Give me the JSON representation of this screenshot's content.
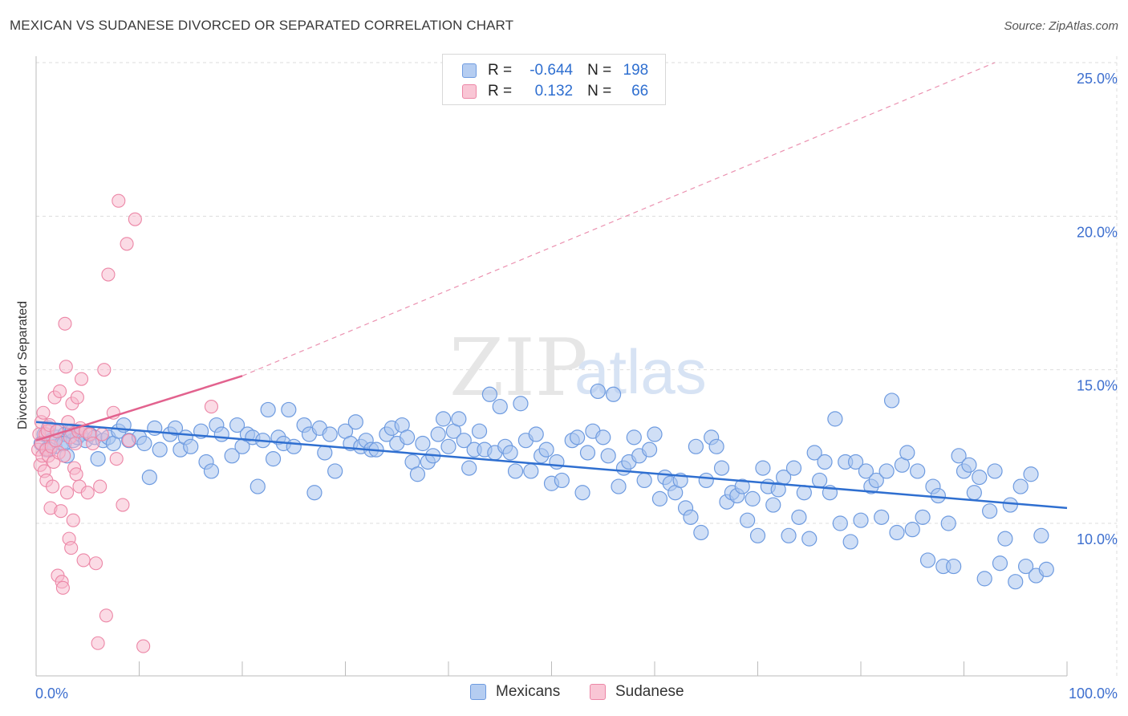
{
  "header": {
    "title": "MEXICAN VS SUDANESE DIVORCED OR SEPARATED CORRELATION CHART",
    "source": "Source: ZipAtlas.com"
  },
  "watermark": {
    "zip": "ZIP",
    "atlas": "atlas"
  },
  "legend": {
    "rows": [
      {
        "r_label": "R =",
        "r_value": "-0.644",
        "n_label": "N =",
        "n_value": "198"
      },
      {
        "r_label": "R =",
        "r_value": "0.132",
        "n_label": "N =",
        "n_value": "66"
      }
    ]
  },
  "bottom_legend": {
    "items": [
      "Mexicans",
      "Sudanese"
    ]
  },
  "colors": {
    "mexicans_fill": "#a9c5ee",
    "mexicans_stroke": "#6e9be0",
    "mexicans_line": "#2f6fd0",
    "sudanese_fill": "#f7b8cc",
    "sudanese_stroke": "#ec86a6",
    "sudanese_line": "#e2628e",
    "tick_text": "#3d6fcf",
    "grid": "#dddddd"
  },
  "chart_data": {
    "type": "scatter",
    "title": "MEXICAN VS SUDANESE DIVORCED OR SEPARATED CORRELATION CHART",
    "xlabel": "",
    "ylabel": "Divorced or Separated",
    "xlim": [
      0,
      100
    ],
    "ylim": [
      5,
      26
    ],
    "x_tick_labels": [
      "0.0%",
      "100.0%"
    ],
    "y_ticks": [
      10,
      15,
      20,
      25
    ],
    "y_tick_labels": [
      "10.0%",
      "15.0%",
      "20.0%",
      "25.0%"
    ],
    "grid": true,
    "legend_placement": "top-center",
    "series": [
      {
        "name": "Mexicans",
        "r": -0.644,
        "n": 198,
        "trend": {
          "x": [
            0,
            100
          ],
          "y": [
            13.3,
            10.5
          ]
        },
        "points": [
          [
            0.5,
            12.6
          ],
          [
            0.8,
            12.9
          ],
          [
            1.0,
            12.4
          ],
          [
            1.2,
            13.1
          ],
          [
            1.5,
            12.7
          ],
          [
            1.8,
            12.5
          ],
          [
            2.0,
            12.8
          ],
          [
            2.2,
            13.0
          ],
          [
            2.5,
            12.6
          ],
          [
            2.8,
            12.9
          ],
          [
            3.0,
            12.2
          ],
          [
            3.3,
            13.0
          ],
          [
            3.6,
            12.7
          ],
          [
            4.0,
            12.8
          ],
          [
            4.3,
            12.9
          ],
          [
            4.8,
            12.7
          ],
          [
            5.2,
            12.9
          ],
          [
            5.7,
            12.8
          ],
          [
            6.0,
            12.1
          ],
          [
            6.5,
            12.7
          ],
          [
            7.0,
            12.8
          ],
          [
            7.5,
            12.6
          ],
          [
            8.0,
            13.0
          ],
          [
            8.5,
            13.2
          ],
          [
            9.0,
            12.7
          ],
          [
            10.0,
            12.8
          ],
          [
            10.5,
            12.6
          ],
          [
            11.0,
            11.5
          ],
          [
            11.5,
            13.1
          ],
          [
            12.0,
            12.4
          ],
          [
            13.0,
            12.9
          ],
          [
            13.5,
            13.1
          ],
          [
            14.0,
            12.4
          ],
          [
            14.5,
            12.8
          ],
          [
            15.0,
            12.5
          ],
          [
            16.0,
            13.0
          ],
          [
            16.5,
            12.0
          ],
          [
            17.0,
            11.7
          ],
          [
            17.5,
            13.2
          ],
          [
            18.0,
            12.9
          ],
          [
            19.0,
            12.2
          ],
          [
            19.5,
            13.2
          ],
          [
            20.0,
            12.5
          ],
          [
            20.5,
            12.9
          ],
          [
            21.0,
            12.8
          ],
          [
            21.5,
            11.2
          ],
          [
            22.0,
            12.7
          ],
          [
            22.5,
            13.7
          ],
          [
            23.0,
            12.1
          ],
          [
            23.5,
            12.8
          ],
          [
            24.0,
            12.6
          ],
          [
            24.5,
            13.7
          ],
          [
            25.0,
            12.5
          ],
          [
            26.0,
            13.2
          ],
          [
            26.5,
            12.9
          ],
          [
            27.0,
            11.0
          ],
          [
            27.5,
            13.1
          ],
          [
            28.0,
            12.3
          ],
          [
            28.5,
            12.9
          ],
          [
            29.0,
            11.7
          ],
          [
            30.0,
            13.0
          ],
          [
            30.5,
            12.6
          ],
          [
            31.0,
            13.3
          ],
          [
            31.5,
            12.5
          ],
          [
            32.0,
            12.7
          ],
          [
            32.5,
            12.4
          ],
          [
            33.0,
            12.4
          ],
          [
            34.0,
            12.9
          ],
          [
            34.5,
            13.1
          ],
          [
            35.0,
            12.6
          ],
          [
            35.5,
            13.2
          ],
          [
            36.0,
            12.8
          ],
          [
            36.5,
            12.0
          ],
          [
            37.0,
            11.6
          ],
          [
            37.5,
            12.6
          ],
          [
            38.0,
            12.0
          ],
          [
            38.5,
            12.2
          ],
          [
            39.0,
            12.9
          ],
          [
            39.5,
            13.4
          ],
          [
            40.0,
            12.5
          ],
          [
            40.5,
            13.0
          ],
          [
            41.0,
            13.4
          ],
          [
            41.5,
            12.7
          ],
          [
            42.0,
            11.8
          ],
          [
            42.5,
            12.4
          ],
          [
            43.0,
            13.0
          ],
          [
            43.5,
            12.4
          ],
          [
            44.0,
            14.2
          ],
          [
            44.5,
            12.3
          ],
          [
            45.0,
            13.8
          ],
          [
            45.5,
            12.5
          ],
          [
            46.0,
            12.3
          ],
          [
            46.5,
            11.7
          ],
          [
            47.0,
            13.9
          ],
          [
            47.5,
            12.7
          ],
          [
            48.0,
            11.7
          ],
          [
            48.5,
            12.9
          ],
          [
            49.0,
            12.2
          ],
          [
            49.5,
            12.4
          ],
          [
            50.0,
            11.3
          ],
          [
            50.5,
            12.0
          ],
          [
            51.0,
            11.4
          ],
          [
            52.0,
            12.7
          ],
          [
            52.5,
            12.8
          ],
          [
            53.0,
            11.0
          ],
          [
            53.5,
            12.3
          ],
          [
            54.0,
            13.0
          ],
          [
            54.5,
            14.3
          ],
          [
            55.0,
            12.8
          ],
          [
            55.5,
            12.2
          ],
          [
            56.0,
            14.2
          ],
          [
            56.5,
            11.2
          ],
          [
            57.0,
            11.8
          ],
          [
            57.5,
            12.0
          ],
          [
            58.0,
            12.8
          ],
          [
            58.5,
            12.2
          ],
          [
            59.0,
            11.4
          ],
          [
            59.5,
            12.4
          ],
          [
            60.0,
            12.9
          ],
          [
            60.5,
            10.8
          ],
          [
            61.0,
            11.5
          ],
          [
            61.5,
            11.3
          ],
          [
            62.0,
            11.0
          ],
          [
            62.5,
            11.4
          ],
          [
            63.0,
            10.5
          ],
          [
            63.5,
            10.2
          ],
          [
            64.0,
            12.5
          ],
          [
            64.5,
            9.7
          ],
          [
            65.0,
            11.4
          ],
          [
            65.5,
            12.8
          ],
          [
            66.0,
            12.5
          ],
          [
            66.5,
            11.8
          ],
          [
            67.0,
            10.7
          ],
          [
            67.5,
            11.0
          ],
          [
            68.0,
            10.9
          ],
          [
            68.5,
            11.2
          ],
          [
            69.0,
            10.1
          ],
          [
            69.5,
            10.8
          ],
          [
            70.0,
            9.6
          ],
          [
            70.5,
            11.8
          ],
          [
            71.0,
            11.2
          ],
          [
            71.5,
            10.6
          ],
          [
            72.0,
            11.1
          ],
          [
            72.5,
            11.5
          ],
          [
            73.0,
            9.6
          ],
          [
            73.5,
            11.8
          ],
          [
            74.0,
            10.2
          ],
          [
            74.5,
            11.0
          ],
          [
            75.0,
            9.5
          ],
          [
            75.5,
            12.3
          ],
          [
            76.0,
            11.4
          ],
          [
            76.5,
            12.0
          ],
          [
            77.0,
            11.0
          ],
          [
            77.5,
            13.4
          ],
          [
            78.0,
            10.0
          ],
          [
            78.5,
            12.0
          ],
          [
            79.0,
            9.4
          ],
          [
            79.5,
            12.0
          ],
          [
            80.0,
            10.1
          ],
          [
            80.5,
            11.7
          ],
          [
            81.0,
            11.2
          ],
          [
            81.5,
            11.4
          ],
          [
            82.0,
            10.2
          ],
          [
            82.5,
            11.7
          ],
          [
            83.0,
            14.0
          ],
          [
            83.5,
            9.7
          ],
          [
            84.0,
            11.9
          ],
          [
            84.5,
            12.3
          ],
          [
            85.0,
            9.8
          ],
          [
            85.5,
            11.7
          ],
          [
            86.0,
            10.2
          ],
          [
            86.5,
            8.8
          ],
          [
            87.0,
            11.2
          ],
          [
            87.5,
            10.9
          ],
          [
            88.0,
            8.6
          ],
          [
            88.5,
            10.0
          ],
          [
            89.0,
            8.6
          ],
          [
            89.5,
            12.2
          ],
          [
            90.0,
            11.7
          ],
          [
            90.5,
            11.9
          ],
          [
            91.0,
            11.0
          ],
          [
            91.5,
            11.5
          ],
          [
            92.0,
            8.2
          ],
          [
            92.5,
            10.4
          ],
          [
            93.0,
            11.7
          ],
          [
            93.5,
            8.7
          ],
          [
            94.0,
            9.5
          ],
          [
            94.5,
            10.6
          ],
          [
            95.0,
            8.1
          ],
          [
            95.5,
            11.2
          ],
          [
            96.0,
            8.6
          ],
          [
            96.5,
            11.6
          ],
          [
            97.0,
            8.3
          ],
          [
            97.5,
            9.6
          ],
          [
            98.0,
            8.5
          ],
          [
            1.3,
            12.4
          ],
          [
            2.7,
            12.6
          ],
          [
            3.5,
            13.0
          ]
        ]
      },
      {
        "name": "Sudanese",
        "r": 0.132,
        "n": 66,
        "trend": {
          "x": [
            0,
            20
          ],
          "y": [
            12.7,
            14.8
          ],
          "dashed_to": [
            93,
            25.0
          ]
        },
        "points": [
          [
            0.2,
            12.4
          ],
          [
            0.3,
            12.9
          ],
          [
            0.4,
            11.9
          ],
          [
            0.5,
            12.6
          ],
          [
            0.5,
            13.3
          ],
          [
            0.6,
            12.2
          ],
          [
            0.7,
            13.6
          ],
          [
            0.8,
            11.7
          ],
          [
            0.9,
            12.9
          ],
          [
            1.0,
            12.4
          ],
          [
            1.0,
            11.4
          ],
          [
            1.1,
            13.0
          ],
          [
            1.2,
            12.2
          ],
          [
            1.3,
            13.2
          ],
          [
            1.4,
            10.5
          ],
          [
            1.5,
            12.5
          ],
          [
            1.6,
            11.2
          ],
          [
            1.7,
            12.0
          ],
          [
            1.8,
            14.1
          ],
          [
            1.9,
            12.7
          ],
          [
            2.0,
            13.0
          ],
          [
            2.1,
            8.3
          ],
          [
            2.2,
            12.3
          ],
          [
            2.3,
            14.3
          ],
          [
            2.4,
            10.4
          ],
          [
            2.5,
            8.1
          ],
          [
            2.6,
            7.9
          ],
          [
            2.7,
            12.2
          ],
          [
            2.8,
            16.5
          ],
          [
            2.9,
            15.1
          ],
          [
            3.0,
            11.0
          ],
          [
            3.1,
            13.3
          ],
          [
            3.2,
            9.5
          ],
          [
            3.3,
            12.8
          ],
          [
            3.4,
            9.2
          ],
          [
            3.5,
            13.9
          ],
          [
            3.6,
            10.1
          ],
          [
            3.7,
            11.8
          ],
          [
            3.8,
            12.6
          ],
          [
            3.9,
            11.6
          ],
          [
            4.0,
            14.1
          ],
          [
            4.1,
            13.0
          ],
          [
            4.2,
            11.2
          ],
          [
            4.3,
            13.1
          ],
          [
            4.4,
            14.7
          ],
          [
            4.6,
            8.8
          ],
          [
            4.8,
            13.0
          ],
          [
            5.0,
            11.0
          ],
          [
            5.2,
            12.9
          ],
          [
            5.5,
            12.6
          ],
          [
            5.8,
            8.7
          ],
          [
            6.0,
            6.1
          ],
          [
            6.2,
            11.2
          ],
          [
            6.6,
            15.0
          ],
          [
            6.8,
            7.0
          ],
          [
            7.0,
            18.1
          ],
          [
            7.5,
            13.6
          ],
          [
            7.8,
            12.1
          ],
          [
            8.0,
            20.5
          ],
          [
            8.4,
            10.6
          ],
          [
            8.8,
            19.1
          ],
          [
            9.0,
            12.7
          ],
          [
            9.6,
            19.9
          ],
          [
            10.4,
            6.0
          ],
          [
            17.0,
            13.8
          ],
          [
            6.4,
            12.9
          ]
        ]
      }
    ]
  }
}
